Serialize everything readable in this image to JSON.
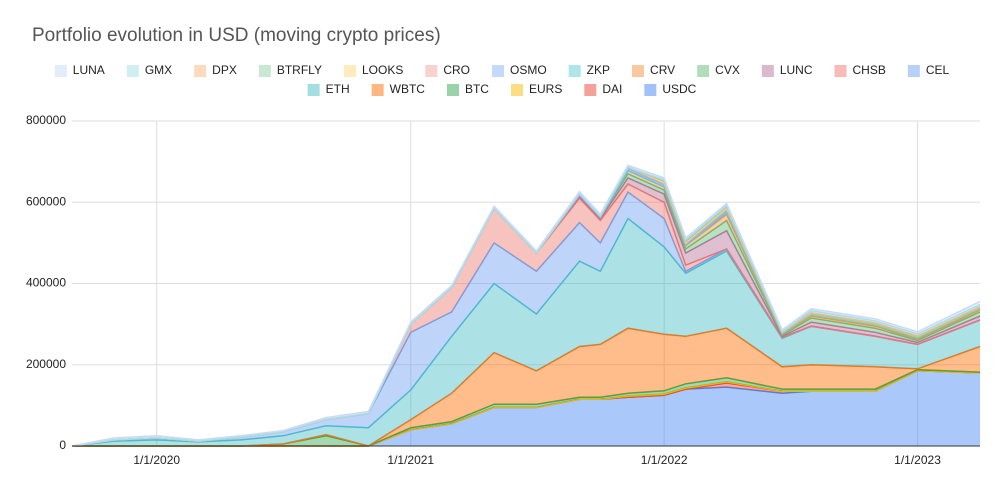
{
  "chart_data": {
    "type": "stacked_area",
    "title": "Portfolio evolution in USD (moving crypto prices)",
    "x": [
      "2019-09-01",
      "2019-11-01",
      "2020-01-01",
      "2020-03-01",
      "2020-05-01",
      "2020-07-01",
      "2020-09-01",
      "2020-11-01",
      "2021-01-01",
      "2021-03-01",
      "2021-05-01",
      "2021-07-01",
      "2021-09-01",
      "2021-10-01",
      "2021-11-10",
      "2022-01-01",
      "2022-02-01",
      "2022-04-01",
      "2022-06-20",
      "2022-08-01",
      "2022-11-01",
      "2023-01-01",
      "2023-04-01"
    ],
    "xlim": [
      "2019-09-01",
      "2023-04-01"
    ],
    "xticks": [
      {
        "value": "2020-01-01",
        "label": "1/1/2020"
      },
      {
        "value": "2021-01-01",
        "label": "1/1/2021"
      },
      {
        "value": "2022-01-01",
        "label": "1/1/2022"
      },
      {
        "value": "2023-01-01",
        "label": "1/1/2023"
      }
    ],
    "ylim": [
      0,
      800000
    ],
    "yticks": [
      0,
      200000,
      400000,
      600000,
      800000
    ],
    "grid": true,
    "legend": "top",
    "stacked": true,
    "series": [
      {
        "name": "LUNA",
        "color": "#c9daf8",
        "values": [
          0,
          5000,
          5000,
          3000,
          3000,
          3000,
          5000,
          5000,
          5000,
          5000,
          5000,
          5000,
          5000,
          5000,
          5000,
          5000,
          5000,
          5000,
          5000,
          5000,
          5000,
          5000,
          8000
        ]
      },
      {
        "name": "GMX",
        "color": "#9fdfe3",
        "values": [
          0,
          0,
          0,
          0,
          0,
          0,
          0,
          0,
          0,
          0,
          0,
          0,
          0,
          0,
          0,
          0,
          0,
          0,
          0,
          5000,
          5000,
          5000,
          5000
        ]
      },
      {
        "name": "DPX",
        "color": "#fbb47c",
        "values": [
          0,
          0,
          0,
          0,
          0,
          0,
          0,
          0,
          0,
          0,
          0,
          0,
          0,
          0,
          0,
          3000,
          3000,
          3000,
          2000,
          3000,
          3000,
          3000,
          3000
        ]
      },
      {
        "name": "BTRFLY",
        "color": "#93d2a6",
        "values": [
          0,
          0,
          0,
          0,
          0,
          0,
          0,
          0,
          0,
          0,
          0,
          0,
          0,
          0,
          0,
          3000,
          3000,
          3000,
          0,
          0,
          0,
          0,
          0
        ]
      },
      {
        "name": "LOOKS",
        "color": "#fdd97a",
        "values": [
          0,
          0,
          0,
          0,
          0,
          0,
          0,
          0,
          0,
          0,
          0,
          0,
          0,
          0,
          0,
          3000,
          3000,
          3000,
          0,
          0,
          0,
          0,
          0
        ]
      },
      {
        "name": "CRO",
        "color": "#f4a49d",
        "values": [
          0,
          0,
          0,
          0,
          0,
          0,
          0,
          0,
          0,
          0,
          0,
          0,
          3000,
          3000,
          3000,
          3000,
          2000,
          3000,
          0,
          0,
          0,
          0,
          0
        ]
      },
      {
        "name": "OSMO",
        "color": "#8ab4f8",
        "values": [
          0,
          0,
          0,
          0,
          0,
          0,
          0,
          0,
          0,
          0,
          0,
          0,
          0,
          0,
          5000,
          5000,
          3000,
          5000,
          2000,
          2000,
          2000,
          2000,
          2000
        ]
      },
      {
        "name": "ZKP",
        "color": "#5ccbd3",
        "values": [
          0,
          0,
          0,
          0,
          0,
          0,
          0,
          0,
          0,
          0,
          0,
          0,
          0,
          0,
          0,
          0,
          0,
          5000,
          2000,
          3000,
          3000,
          3000,
          3000
        ]
      },
      {
        "name": "CRV",
        "color": "#f6913f",
        "values": [
          0,
          0,
          0,
          0,
          0,
          0,
          0,
          0,
          0,
          0,
          0,
          0,
          0,
          0,
          8000,
          8000,
          8000,
          15000,
          2000,
          5000,
          5000,
          3000,
          5000
        ]
      },
      {
        "name": "CVX",
        "color": "#66bb77",
        "values": [
          0,
          0,
          0,
          0,
          0,
          0,
          0,
          0,
          0,
          0,
          0,
          0,
          3000,
          3000,
          10000,
          10000,
          10000,
          25000,
          3000,
          10000,
          10000,
          5000,
          10000
        ]
      },
      {
        "name": "LUNC",
        "color": "#b5739a",
        "values": [
          0,
          0,
          0,
          0,
          0,
          0,
          0,
          0,
          0,
          0,
          0,
          0,
          5000,
          5000,
          15000,
          20000,
          30000,
          45000,
          3000,
          10000,
          10000,
          5000,
          10000
        ]
      },
      {
        "name": "CHSB",
        "color": "#ee7a6f",
        "values": [
          0,
          0,
          0,
          0,
          0,
          0,
          0,
          0,
          20000,
          60000,
          85000,
          45000,
          60000,
          55000,
          20000,
          40000,
          15000,
          0,
          0,
          0,
          0,
          0,
          0
        ]
      },
      {
        "name": "CEL",
        "color": "#6fa2f2",
        "values": [
          0,
          3000,
          5000,
          2000,
          7000,
          10000,
          15000,
          35000,
          142000,
          60000,
          100000,
          105000,
          95000,
          70000,
          65000,
          70000,
          5000,
          5000,
          2000,
          0,
          0,
          0,
          0
        ]
      },
      {
        "name": "ETH",
        "color": "#46bdc6",
        "values": [
          0,
          12000,
          15000,
          10000,
          15000,
          20000,
          22000,
          45000,
          73000,
          140000,
          170000,
          140000,
          210000,
          180000,
          270000,
          215000,
          155000,
          190000,
          70000,
          95000,
          75000,
          60000,
          65000
        ]
      },
      {
        "name": "WBTC",
        "color": "#ff6d01",
        "values": [
          0,
          0,
          0,
          0,
          0,
          0,
          3000,
          0,
          20000,
          70000,
          127000,
          82000,
          125000,
          130000,
          160000,
          139000,
          117000,
          122000,
          55000,
          60000,
          55000,
          2000,
          63000
        ]
      },
      {
        "name": "BTC",
        "color": "#34a853",
        "values": [
          0,
          0,
          0,
          0,
          0,
          5000,
          25000,
          0,
          5000,
          5000,
          8000,
          8000,
          5000,
          5000,
          7000,
          8000,
          10000,
          10000,
          5000,
          5000,
          5000,
          3000,
          2000
        ]
      },
      {
        "name": "EURS",
        "color": "#fbbc04",
        "values": [
          0,
          0,
          0,
          0,
          0,
          0,
          0,
          0,
          0,
          0,
          0,
          0,
          0,
          0,
          3000,
          3000,
          3000,
          3000,
          0,
          0,
          0,
          0,
          0
        ]
      },
      {
        "name": "DAI",
        "color": "#ea4335",
        "values": [
          0,
          0,
          0,
          0,
          0,
          0,
          0,
          0,
          0,
          0,
          0,
          0,
          0,
          0,
          0,
          0,
          0,
          10000,
          5000,
          0,
          0,
          0,
          0
        ]
      },
      {
        "name": "USDC",
        "color": "#4285f4",
        "values": [
          0,
          0,
          0,
          0,
          0,
          0,
          0,
          0,
          40000,
          55000,
          95000,
          95000,
          115000,
          115000,
          120000,
          125000,
          140000,
          145000,
          130000,
          135000,
          135000,
          185000,
          180000
        ]
      }
    ]
  }
}
